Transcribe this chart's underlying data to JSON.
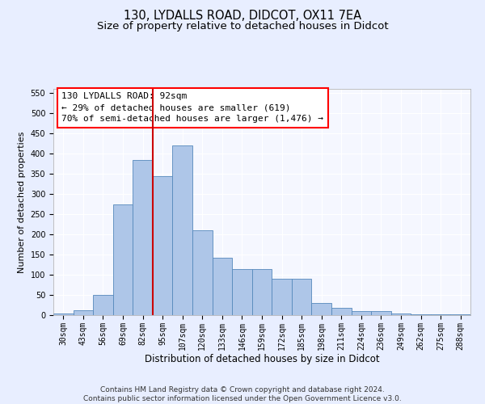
{
  "title": "130, LYDALLS ROAD, DIDCOT, OX11 7EA",
  "subtitle": "Size of property relative to detached houses in Didcot",
  "xlabel": "Distribution of detached houses by size in Didcot",
  "ylabel": "Number of detached properties",
  "categories": [
    "30sqm",
    "43sqm",
    "56sqm",
    "69sqm",
    "82sqm",
    "95sqm",
    "107sqm",
    "120sqm",
    "133sqm",
    "146sqm",
    "159sqm",
    "172sqm",
    "185sqm",
    "198sqm",
    "211sqm",
    "224sqm",
    "236sqm",
    "249sqm",
    "262sqm",
    "275sqm",
    "288sqm"
  ],
  "values": [
    5,
    12,
    50,
    275,
    385,
    345,
    420,
    210,
    143,
    115,
    115,
    90,
    90,
    30,
    18,
    10,
    10,
    5,
    2,
    2,
    2
  ],
  "bar_color": "#aec6e8",
  "bar_edge_color": "#5588bb",
  "vline_x": 4.5,
  "vline_color": "#cc0000",
  "annotation_line1": "130 LYDALLS ROAD: 92sqm",
  "annotation_line2": "← 29% of detached houses are smaller (619)",
  "annotation_line3": "70% of semi-detached houses are larger (1,476) →",
  "ylim": [
    0,
    560
  ],
  "yticks": [
    0,
    50,
    100,
    150,
    200,
    250,
    300,
    350,
    400,
    450,
    500,
    550
  ],
  "footer_text": "Contains HM Land Registry data © Crown copyright and database right 2024.\nContains public sector information licensed under the Open Government Licence v3.0.",
  "bg_color": "#e8eeff",
  "plot_bg_color": "#f5f7ff",
  "title_fontsize": 10.5,
  "subtitle_fontsize": 9.5,
  "xlabel_fontsize": 8.5,
  "ylabel_fontsize": 8,
  "tick_fontsize": 7,
  "annotation_fontsize": 8,
  "footer_fontsize": 6.5
}
